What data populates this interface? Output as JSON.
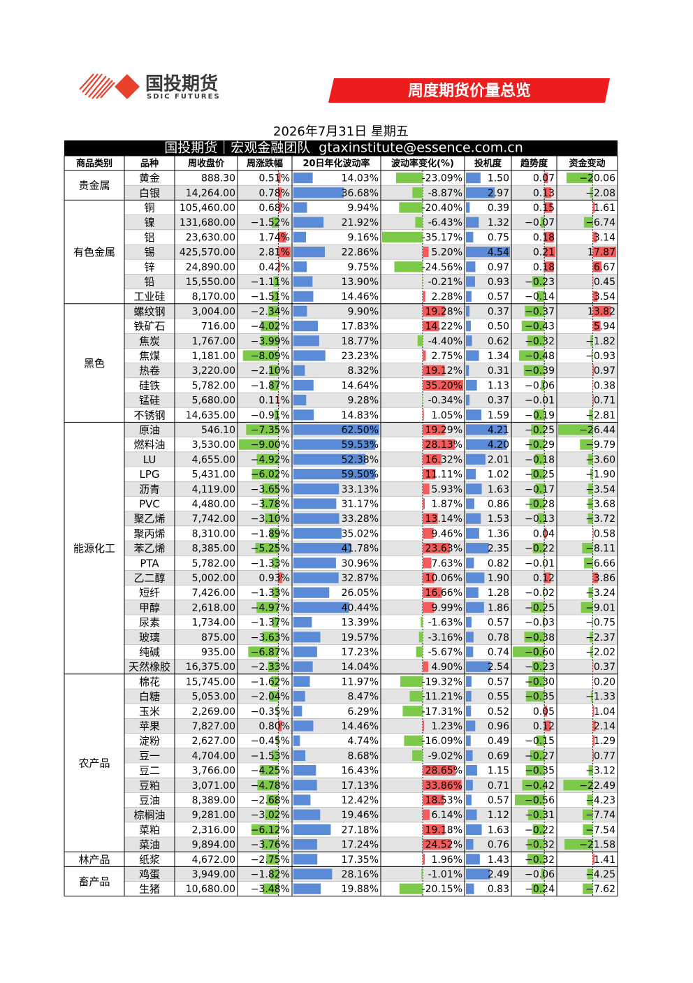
{
  "header": {
    "logo_text": "国投期货",
    "logo_subtext": "SDIC FUTURES",
    "banner": "周度期货价量总览",
    "date": "2026年7月31日 星期五",
    "team": "国投期货｜宏观金融团队  gtaxinstitute@essence.com.cn"
  },
  "table": {
    "columns": [
      "商品类别",
      "品种",
      "周收盘价",
      "周涨跌幅",
      "20日年化波动率",
      "波动率变化(%)",
      "投机度",
      "趋势度",
      "资金变动"
    ],
    "groups": [
      {
        "name": "贵金属",
        "rows": [
          [
            "黄金",
            "888.30",
            "0.51%",
            "14.03%",
            "-23.09%",
            "1.50",
            "0.07",
            "−20.06"
          ],
          [
            "白银",
            "14,264.00",
            "0.78%",
            "36.68%",
            "-8.87%",
            "2.97",
            "0.13",
            "−2.08"
          ]
        ]
      },
      {
        "name": "有色金属",
        "rows": [
          [
            "铜",
            "105,460.00",
            "0.68%",
            "9.94%",
            "-20.40%",
            "0.39",
            "0.15",
            "1.61"
          ],
          [
            "镍",
            "131,680.00",
            "−1.52%",
            "21.92%",
            "-6.43%",
            "1.32",
            "−0.07",
            "−6.74"
          ],
          [
            "铝",
            "23,630.00",
            "1.74%",
            "9.16%",
            "-35.17%",
            "0.75",
            "0.18",
            "3.14"
          ],
          [
            "锡",
            "425,570.00",
            "2.81%",
            "22.86%",
            "5.20%",
            "4.54",
            "0.21",
            "17.87"
          ],
          [
            "锌",
            "24,890.00",
            "0.42%",
            "9.75%",
            "-24.56%",
            "0.97",
            "0.18",
            "6.67"
          ],
          [
            "铅",
            "15,550.00",
            "−1.11%",
            "13.90%",
            "-0.21%",
            "0.93",
            "−0.23",
            "0.45"
          ],
          [
            "工业硅",
            "8,170.00",
            "−1.51%",
            "14.46%",
            "2.28%",
            "0.57",
            "−0.14",
            "3.54"
          ]
        ]
      },
      {
        "name": "黑色",
        "rows": [
          [
            "螺纹钢",
            "3,004.00",
            "−2.34%",
            "9.90%",
            "19.28%",
            "0.37",
            "−0.37",
            "13.82"
          ],
          [
            "铁矿石",
            "716.00",
            "−4.02%",
            "17.83%",
            "14.22%",
            "0.50",
            "−0.43",
            "5.94"
          ],
          [
            "焦炭",
            "1,767.00",
            "−3.99%",
            "18.77%",
            "-4.40%",
            "0.62",
            "−0.32",
            "−1.82"
          ],
          [
            "焦煤",
            "1,181.00",
            "−8.09%",
            "23.23%",
            "2.75%",
            "1.34",
            "−0.48",
            "−0.93"
          ],
          [
            "热卷",
            "3,220.00",
            "−2.10%",
            "8.32%",
            "19.12%",
            "0.31",
            "−0.39",
            "0.97"
          ],
          [
            "硅铁",
            "5,782.00",
            "−1.87%",
            "14.64%",
            "35.20%",
            "1.13",
            "−0.06",
            "0.38"
          ],
          [
            "锰硅",
            "5,680.00",
            "0.11%",
            "9.28%",
            "-0.34%",
            "0.37",
            "−0.01",
            "0.71"
          ],
          [
            "不锈钢",
            "14,635.00",
            "−0.91%",
            "14.83%",
            "1.05%",
            "1.59",
            "−0.19",
            "−2.81"
          ]
        ]
      },
      {
        "name": "能源化工",
        "rows": [
          [
            "原油",
            "546.10",
            "−7.35%",
            "62.50%",
            "19.29%",
            "4.21",
            "−0.25",
            "−26.44"
          ],
          [
            "燃料油",
            "3,530.00",
            "−9.00%",
            "59.53%",
            "28.13%",
            "4.20",
            "−0.29",
            "−9.79"
          ],
          [
            "LU",
            "4,655.00",
            "−4.92%",
            "52.38%",
            "16.32%",
            "2.01",
            "−0.18",
            "−3.60"
          ],
          [
            "LPG",
            "5,431.00",
            "−6.02%",
            "59.50%",
            "11.11%",
            "1.02",
            "−0.25",
            "−1.90"
          ],
          [
            "沥青",
            "4,119.00",
            "−3.65%",
            "33.13%",
            "5.93%",
            "1.63",
            "−0.17",
            "−3.54"
          ],
          [
            "PVC",
            "4,480.00",
            "−3.78%",
            "31.17%",
            "1.87%",
            "0.86",
            "−0.28",
            "−3.68"
          ],
          [
            "聚乙烯",
            "7,742.00",
            "−3.10%",
            "33.28%",
            "13.14%",
            "1.53",
            "−0.13",
            "−3.72"
          ],
          [
            "聚丙烯",
            "8,310.00",
            "−1.89%",
            "35.02%",
            "9.46%",
            "1.36",
            "0.04",
            "0.58"
          ],
          [
            "苯乙烯",
            "8,385.00",
            "−5.25%",
            "41.78%",
            "23.63%",
            "2.35",
            "−0.22",
            "−8.11"
          ],
          [
            "PTA",
            "5,782.00",
            "−1.33%",
            "30.96%",
            "7.63%",
            "0.82",
            "−0.01",
            "−6.66"
          ],
          [
            "乙二醇",
            "5,002.00",
            "0.93%",
            "32.87%",
            "10.06%",
            "1.90",
            "0.12",
            "3.86"
          ],
          [
            "短纤",
            "7,426.00",
            "−1.33%",
            "26.05%",
            "16.66%",
            "1.28",
            "−0.02",
            "−3.24"
          ],
          [
            "甲醇",
            "2,618.00",
            "−4.97%",
            "40.44%",
            "9.99%",
            "1.86",
            "−0.25",
            "−9.01"
          ],
          [
            "尿素",
            "1,734.00",
            "−1.37%",
            "13.39%",
            "-1.63%",
            "0.57",
            "−0.03",
            "−0.75"
          ],
          [
            "玻璃",
            "875.00",
            "−3.63%",
            "19.57%",
            "-3.16%",
            "0.78",
            "−0.38",
            "−2.37"
          ],
          [
            "纯碱",
            "935.00",
            "−6.87%",
            "17.23%",
            "-5.67%",
            "0.74",
            "−0.60",
            "−2.02"
          ],
          [
            "天然橡胶",
            "16,375.00",
            "−2.33%",
            "14.04%",
            "4.90%",
            "2.54",
            "−0.23",
            "0.37"
          ]
        ]
      },
      {
        "name": "农产品",
        "rows": [
          [
            "棉花",
            "15,745.00",
            "−1.62%",
            "11.97%",
            "-19.32%",
            "0.57",
            "−0.30",
            "0.20"
          ],
          [
            "白糖",
            "5,053.00",
            "−2.04%",
            "8.47%",
            "-11.21%",
            "0.55",
            "−0.35",
            "−1.33"
          ],
          [
            "玉米",
            "2,269.00",
            "−0.35%",
            "6.29%",
            "-17.31%",
            "0.52",
            "0.05",
            "1.04"
          ],
          [
            "苹果",
            "7,827.00",
            "0.80%",
            "14.46%",
            "1.23%",
            "0.96",
            "0.12",
            "2.14"
          ],
          [
            "淀粉",
            "2,627.00",
            "−0.45%",
            "4.74%",
            "-16.09%",
            "0.49",
            "−0.15",
            "1.29"
          ],
          [
            "豆一",
            "4,704.00",
            "−1.53%",
            "8.68%",
            "-9.02%",
            "0.69",
            "−0.27",
            "0.77"
          ],
          [
            "豆二",
            "3,766.00",
            "−4.25%",
            "16.43%",
            "28.65%",
            "1.15",
            "−0.35",
            "−3.12"
          ],
          [
            "豆粕",
            "3,071.00",
            "−4.78%",
            "17.13%",
            "33.86%",
            "0.71",
            "−0.42",
            "−22.49"
          ],
          [
            "豆油",
            "8,389.00",
            "−2.68%",
            "12.42%",
            "18.53%",
            "0.57",
            "−0.56",
            "−4.23"
          ],
          [
            "棕榈油",
            "9,281.00",
            "−3.02%",
            "19.46%",
            "6.14%",
            "1.12",
            "−0.31",
            "−7.74"
          ],
          [
            "菜粕",
            "2,316.00",
            "−6.12%",
            "27.18%",
            "19.18%",
            "1.63",
            "−0.22",
            "−7.54"
          ],
          [
            "菜油",
            "9,894.00",
            "−3.76%",
            "17.24%",
            "24.52%",
            "0.76",
            "−0.32",
            "−21.58"
          ]
        ]
      },
      {
        "name": "林产品",
        "rows": [
          [
            "纸浆",
            "4,672.00",
            "−2.75%",
            "17.35%",
            "1.96%",
            "1.43",
            "−0.32",
            "1.41"
          ]
        ]
      },
      {
        "name": "畜产品",
        "rows": [
          [
            "鸡蛋",
            "3,949.00",
            "−1.82%",
            "28.16%",
            "-1.01%",
            "2.49",
            "−0.06",
            "−4.25"
          ],
          [
            "生猪",
            "10,680.00",
            "−3.48%",
            "19.88%",
            "-20.15%",
            "0.83",
            "−0.24",
            "−7.62"
          ]
        ]
      }
    ]
  }
}
